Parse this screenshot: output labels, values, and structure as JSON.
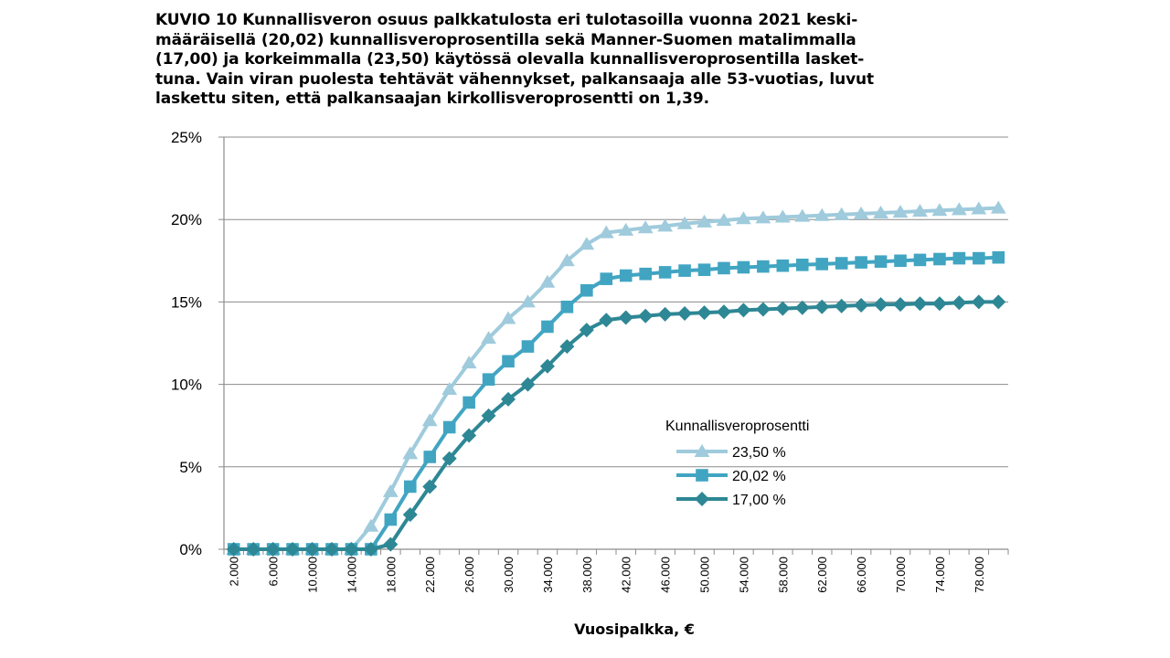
{
  "caption": {
    "lines": [
      "KUVIO 10 Kunnallisveron osuus palkkatulosta eri tulotasoilla vuonna 2021 keski-",
      "määräisellä (20,02) kunnallisveroprosentilla sekä Manner-Suomen matalimmalla",
      "(17,00) ja korkeimmalla (23,50) käytössä olevalla kunnallisveroprosentilla lasket-",
      "tuna. Vain viran puolesta tehtävät vähennykset, palkansaaja alle 53-vuotias, luvut",
      "laskettu siten, että palkansaajan kirkollisveroprosentti on 1,39."
    ]
  },
  "chart_data": {
    "type": "line",
    "xlabel": "Vuosipalkka, €",
    "ylabel": "",
    "ylim": [
      0,
      25
    ],
    "yticks": [
      "0%",
      "5%",
      "10%",
      "15%",
      "20%",
      "25%"
    ],
    "grid": "horizontal",
    "x": [
      2000,
      4000,
      6000,
      8000,
      10000,
      12000,
      14000,
      16000,
      18000,
      20000,
      22000,
      24000,
      26000,
      28000,
      30000,
      32000,
      34000,
      36000,
      38000,
      40000,
      42000,
      44000,
      46000,
      48000,
      50000,
      52000,
      54000,
      56000,
      58000,
      60000,
      62000,
      64000,
      66000,
      68000,
      70000,
      72000,
      74000,
      76000,
      78000,
      80000
    ],
    "x_tick_labels": [
      "2.000",
      "6.000",
      "10.000",
      "14.000",
      "18.000",
      "22.000",
      "26.000",
      "30.000",
      "34.000",
      "38.000",
      "42.000",
      "46.000",
      "50.000",
      "54.000",
      "58.000",
      "62.000",
      "66.000",
      "70.000",
      "74.000",
      "78.000"
    ],
    "legend": {
      "title": "Kunnallisveroprosentti",
      "position": "inside-right"
    },
    "series": [
      {
        "name": "23,50 %",
        "color": "#9fcbdc",
        "marker": "triangle",
        "values": [
          0,
          0,
          0,
          0,
          0,
          0,
          0,
          1.4,
          3.5,
          5.8,
          7.8,
          9.7,
          11.3,
          12.8,
          14.0,
          15.0,
          16.2,
          17.5,
          18.5,
          19.2,
          19.35,
          19.5,
          19.6,
          19.75,
          19.85,
          19.95,
          20.05,
          20.1,
          20.15,
          20.2,
          20.25,
          20.3,
          20.35,
          20.4,
          20.45,
          20.5,
          20.55,
          20.6,
          20.65,
          20.7
        ]
      },
      {
        "name": "20,02 %",
        "color": "#41a5c2",
        "marker": "square",
        "values": [
          0,
          0,
          0,
          0,
          0,
          0,
          0,
          0,
          1.8,
          3.8,
          5.6,
          7.4,
          8.9,
          10.3,
          11.4,
          12.3,
          13.5,
          14.7,
          15.7,
          16.4,
          16.6,
          16.7,
          16.8,
          16.9,
          16.95,
          17.05,
          17.1,
          17.15,
          17.2,
          17.25,
          17.3,
          17.35,
          17.4,
          17.45,
          17.5,
          17.55,
          17.6,
          17.65,
          17.65,
          17.7
        ]
      },
      {
        "name": "17,00 %",
        "color": "#2e8795",
        "marker": "diamond",
        "values": [
          0,
          0,
          0,
          0,
          0,
          0,
          0,
          0,
          0.3,
          2.1,
          3.8,
          5.5,
          6.9,
          8.1,
          9.1,
          10.0,
          11.1,
          12.3,
          13.3,
          13.9,
          14.05,
          14.15,
          14.25,
          14.3,
          14.35,
          14.4,
          14.5,
          14.55,
          14.6,
          14.65,
          14.7,
          14.75,
          14.8,
          14.85,
          14.85,
          14.9,
          14.9,
          14.95,
          15.0,
          15.0
        ]
      }
    ]
  }
}
